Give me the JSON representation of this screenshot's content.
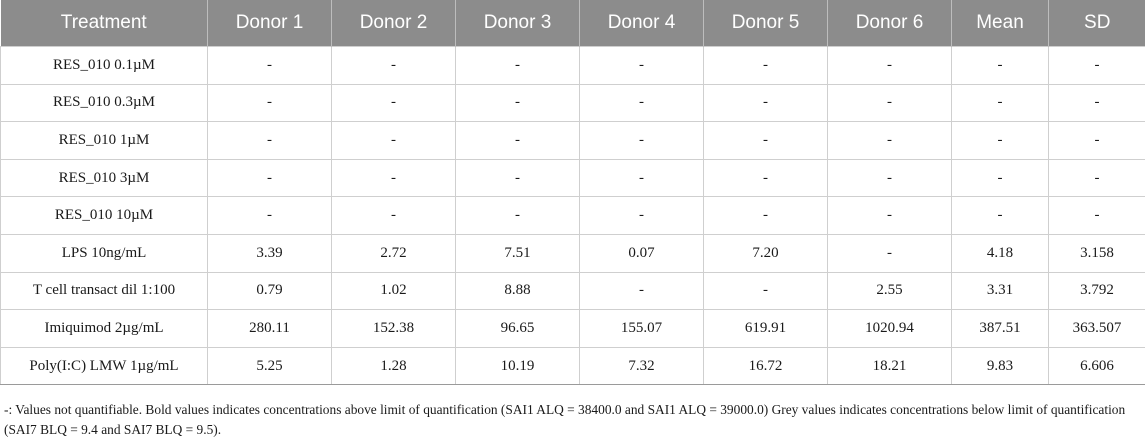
{
  "table": {
    "headers": [
      "Treatment",
      "Donor 1",
      "Donor 2",
      "Donor 3",
      "Donor 4",
      "Donor 5",
      "Donor 6",
      "Mean",
      "SD"
    ],
    "rows": [
      [
        "RES_010 0.1µM",
        "-",
        "-",
        "-",
        "-",
        "-",
        "-",
        "-",
        "-"
      ],
      [
        "RES_010 0.3µM",
        "-",
        "-",
        "-",
        "-",
        "-",
        "-",
        "-",
        "-"
      ],
      [
        "RES_010 1µM",
        "-",
        "-",
        "-",
        "-",
        "-",
        "-",
        "-",
        "-"
      ],
      [
        "RES_010 3µM",
        "-",
        "-",
        "-",
        "-",
        "-",
        "-",
        "-",
        "-"
      ],
      [
        "RES_010 10µM",
        "-",
        "-",
        "-",
        "-",
        "-",
        "-",
        "-",
        "-"
      ],
      [
        "LPS 10ng/mL",
        "3.39",
        "2.72",
        "7.51",
        "0.07",
        "7.20",
        "-",
        "4.18",
        "3.158"
      ],
      [
        "T cell transact dil 1:100",
        "0.79",
        "1.02",
        "8.88",
        "-",
        "-",
        "2.55",
        "3.31",
        "3.792"
      ],
      [
        "Imiquimod 2µg/mL",
        "280.11",
        "152.38",
        "96.65",
        "155.07",
        "619.91",
        "1020.94",
        "387.51",
        "363.507"
      ],
      [
        "Poly(I:C) LMW 1µg/mL",
        "5.25",
        "1.28",
        "10.19",
        "7.32",
        "16.72",
        "18.21",
        "9.83",
        "6.606"
      ]
    ]
  },
  "footnote": "-: Values not quantifiable. Bold values indicates concentrations above limit of quantification (SAI1 ALQ = 38400.0 and SAI1 ALQ = 39000.0) Grey values indicates concentrations below limit of quantification (SAI7 BLQ = 9.4 and SAI7 BLQ = 9.5)."
}
